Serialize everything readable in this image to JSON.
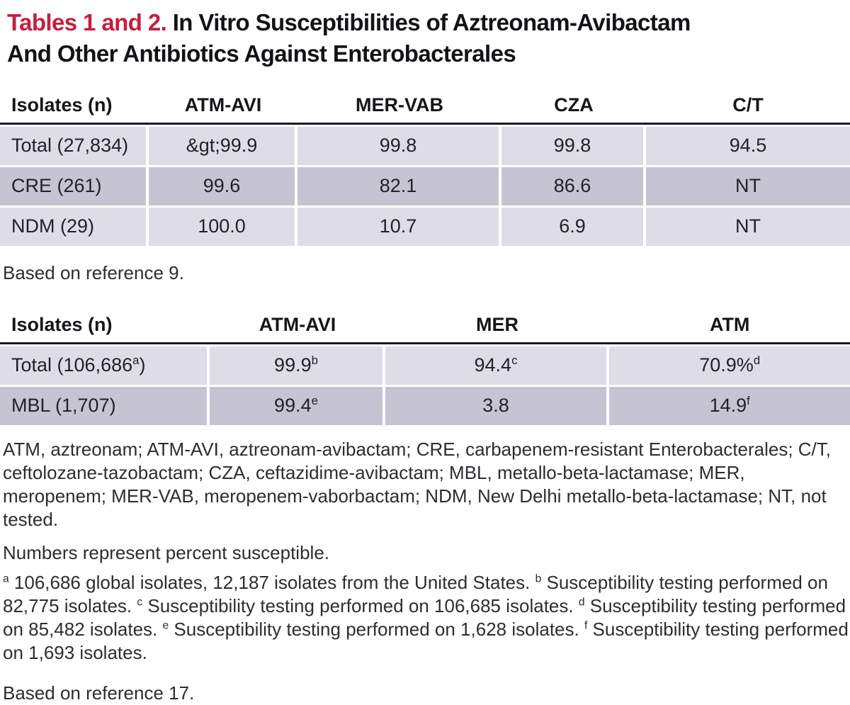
{
  "title": {
    "label": "Tables 1 and 2.",
    "line1": "In Vitro Susceptibilities of Aztreonam-Avibactam",
    "line2": "And Other Antibiotics Against Enterobacterales"
  },
  "table1": {
    "columns": [
      "Isolates (n)",
      "ATM-AVI",
      "MER-VAB",
      "CZA",
      "C/T"
    ],
    "rows": [
      {
        "label": "Total (27,834)",
        "values": [
          "&gt;99.9",
          "99.8",
          "99.8",
          "94.5"
        ]
      },
      {
        "label": "CRE (261)",
        "values": [
          "99.6",
          "82.1",
          "86.6",
          "NT"
        ]
      },
      {
        "label": "NDM (29)",
        "values": [
          "100.0",
          "10.7",
          "6.9",
          "NT"
        ]
      }
    ],
    "source_note": "Based on reference 9."
  },
  "table2": {
    "columns": [
      "Isolates (n)",
      "ATM-AVI",
      "MER",
      "ATM"
    ],
    "rows": [
      {
        "label": "Total (106,686^a)",
        "values": [
          "99.9^b",
          "94.4^c",
          "70.9%^d"
        ]
      },
      {
        "label": "MBL (1,707)",
        "values": [
          "99.4^e",
          "3.8",
          "14.9^f"
        ]
      }
    ],
    "source_note": "Based on reference 17."
  },
  "notes": {
    "abbreviations": "ATM, aztreonam; ATM-AVI, aztreonam-avibactam; CRE, carbapenem-resistant Enterobacterales; C/T, ceftolozane-tazobactam; CZA, ceftazidime-avibactam; MBL, metallo-beta-lactamase; MER, meropenem; MER-VAB, meropenem-vaborbactam; NDM, New Delhi metallo-beta-lactamase; NT, not tested.",
    "percent": "Numbers represent percent susceptible.",
    "details": "^a 106,686 global isolates, 12,187 isolates from the United States. ^b Susceptibility testing performed on 82,775 isolates. ^c Susceptibility testing performed on 106,685 isolates. ^d Susceptibility testing performed on 85,482 isolates. ^e Susceptibility testing performed on 1,628 isolates. ^f Susceptibility testing performed on 1,693 isolates."
  },
  "colors": {
    "accent_red": "#c41f3e",
    "row_light": "#dedce6",
    "row_dark": "#c6c3d3",
    "header_rule": "#1d1a22"
  }
}
